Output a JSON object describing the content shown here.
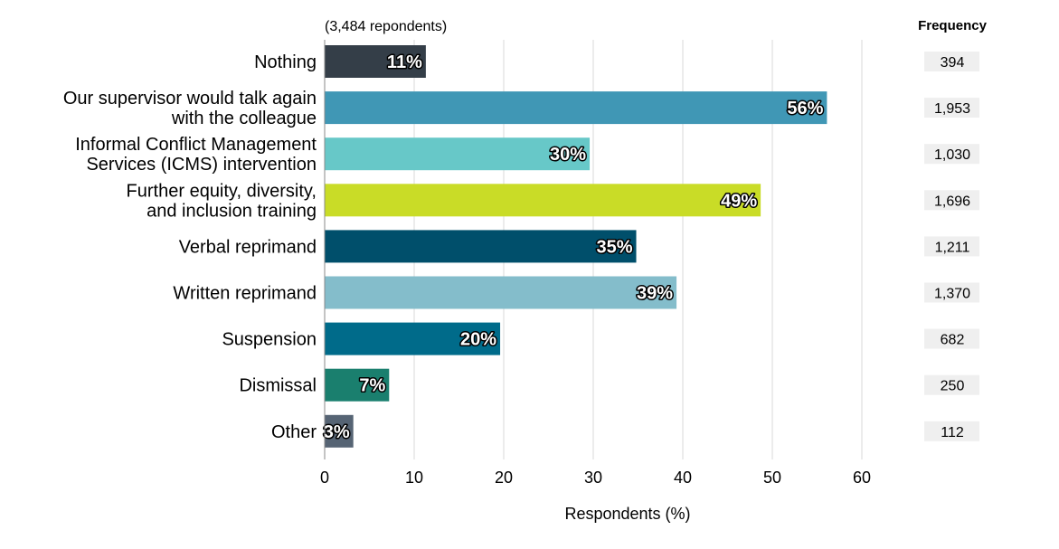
{
  "chart_data": {
    "type": "bar",
    "orientation": "horizontal",
    "subtitle": "(3,484 repondents)",
    "xlabel": "Respondents (%)",
    "xlim": [
      0,
      60
    ],
    "xticks": [
      0,
      10,
      20,
      30,
      40,
      50,
      60
    ],
    "grid": true,
    "categories": [
      [
        "Nothing"
      ],
      [
        "Our supervisor would talk again",
        "with the colleague"
      ],
      [
        "Informal Conflict Management",
        "Services (ICMS) intervention"
      ],
      [
        "Further equity, diversity,",
        "and inclusion training"
      ],
      [
        "Verbal reprimand"
      ],
      [
        "Written reprimand"
      ],
      [
        "Suspension"
      ],
      [
        "Dismissal"
      ],
      [
        "Other"
      ]
    ],
    "values": [
      11.3,
      56.1,
      29.6,
      48.7,
      34.8,
      39.3,
      19.6,
      7.2,
      3.2
    ],
    "data_labels": [
      "11%",
      "56%",
      "30%",
      "49%",
      "35%",
      "39%",
      "20%",
      "7%",
      "3%"
    ],
    "colors": [
      "#343e48",
      "#4097b5",
      "#67c8c8",
      "#c9dc27",
      "#004f6b",
      "#84bdcb",
      "#006b8a",
      "#1a7f6e",
      "#566474"
    ],
    "frequency_header": "Frequency",
    "frequencies": [
      "394",
      "1,953",
      "1,030",
      "1,696",
      "1,211",
      "1,370",
      "682",
      "250",
      "112"
    ]
  }
}
